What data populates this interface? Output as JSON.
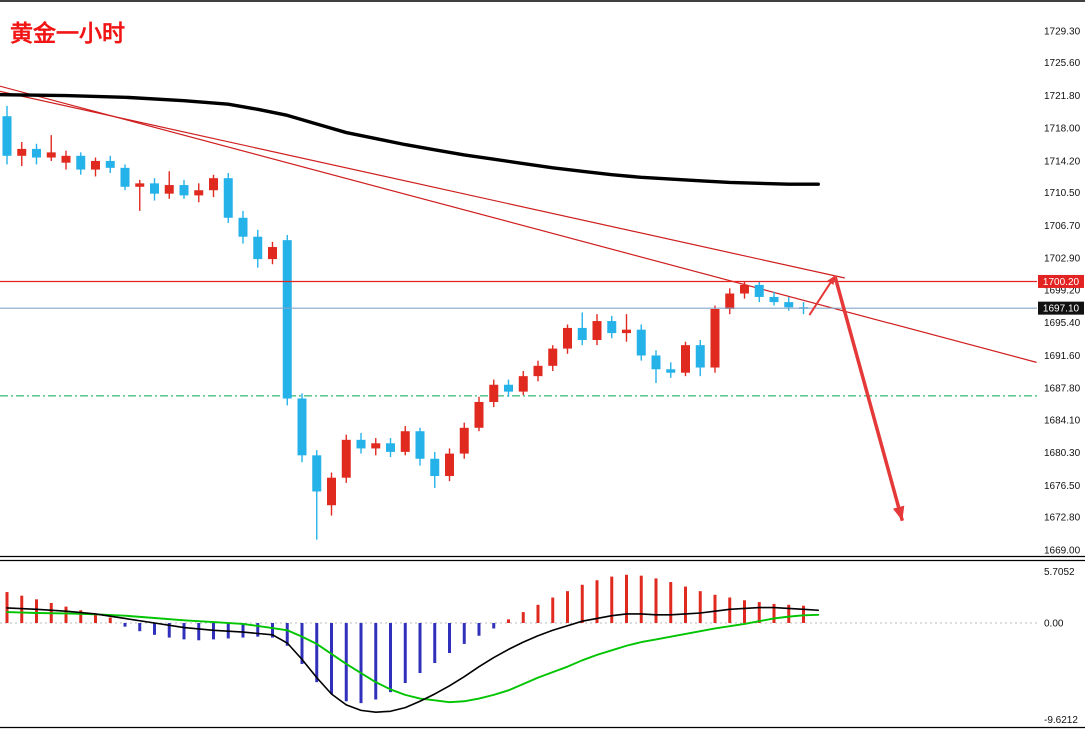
{
  "title": "黄金一小时",
  "colors": {
    "title": "#f21515",
    "bull": "#e02a20",
    "bear": "#25b2e8",
    "hist_neg": "#3030bb",
    "macd_line": "#000000",
    "signal_line": "#00c400",
    "ma_black": "#000000",
    "trend": "#cf1f1f",
    "arrow": "#e53939",
    "level_red": "#e32222",
    "level_blue": "#86a5c9",
    "level_green": "#00a550",
    "border": "#000000",
    "background": "#ffffff"
  },
  "y_axis": {
    "labels": [
      "1729.30",
      "1725.60",
      "1721.80",
      "1718.00",
      "1714.20",
      "1710.50",
      "1706.70",
      "1702.90",
      "1699.20",
      "1695.40",
      "1691.60",
      "1687.80",
      "1684.10",
      "1680.30",
      "1676.50",
      "1672.80",
      "1669.00"
    ]
  },
  "price_tags": [
    {
      "label": "1700.20",
      "price": 1700.2,
      "bg": "#e32222",
      "fg": "#ffffff"
    },
    {
      "label": "1697.10",
      "price": 1697.1,
      "bg": "#111111",
      "fg": "#ffffff"
    }
  ],
  "indicator_axis": {
    "max_label": "5.7052",
    "zero_label": "0.00",
    "min_label": "-9.6212"
  },
  "chart_data": {
    "type": "candlestick",
    "title": "黄金一小时",
    "price_range": [
      1669.0,
      1729.3
    ],
    "current_price": 1697.1,
    "resistance_level": 1700.2,
    "candles": [
      [
        1719.4,
        1720.6,
        1713.8,
        1714.8
      ],
      [
        1714.8,
        1716.4,
        1713.6,
        1715.6
      ],
      [
        1715.6,
        1716.2,
        1713.8,
        1714.6
      ],
      [
        1714.6,
        1717.2,
        1714.2,
        1715.2
      ],
      [
        1714.0,
        1715.4,
        1713.2,
        1714.8
      ],
      [
        1714.8,
        1715.2,
        1712.6,
        1713.2
      ],
      [
        1713.2,
        1714.6,
        1712.4,
        1714.2
      ],
      [
        1714.2,
        1714.8,
        1712.8,
        1713.4
      ],
      [
        1713.4,
        1713.8,
        1710.8,
        1711.2
      ],
      [
        1711.2,
        1712.0,
        1708.4,
        1711.6
      ],
      [
        1711.6,
        1712.2,
        1709.6,
        1710.4
      ],
      [
        1710.4,
        1713.0,
        1709.8,
        1711.4
      ],
      [
        1711.4,
        1712.0,
        1709.8,
        1710.2
      ],
      [
        1710.2,
        1711.6,
        1709.4,
        1710.8
      ],
      [
        1710.8,
        1712.6,
        1710.0,
        1712.2
      ],
      [
        1712.2,
        1712.8,
        1707.0,
        1707.6
      ],
      [
        1707.6,
        1708.4,
        1704.6,
        1705.4
      ],
      [
        1705.4,
        1706.2,
        1701.8,
        1702.8
      ],
      [
        1702.8,
        1704.8,
        1702.2,
        1704.2
      ],
      [
        1705.0,
        1705.6,
        1685.8,
        1686.6
      ],
      [
        1686.6,
        1687.2,
        1679.2,
        1680.0
      ],
      [
        1680.0,
        1680.6,
        1670.2,
        1675.8
      ],
      [
        1674.2,
        1678.0,
        1673.0,
        1677.4
      ],
      [
        1677.4,
        1682.4,
        1676.8,
        1681.8
      ],
      [
        1681.8,
        1682.6,
        1680.2,
        1680.8
      ],
      [
        1680.8,
        1682.0,
        1680.0,
        1681.4
      ],
      [
        1681.4,
        1682.0,
        1679.8,
        1680.4
      ],
      [
        1680.4,
        1683.4,
        1680.0,
        1682.8
      ],
      [
        1682.8,
        1683.2,
        1678.8,
        1679.6
      ],
      [
        1679.6,
        1680.4,
        1676.2,
        1677.6
      ],
      [
        1677.6,
        1680.8,
        1677.0,
        1680.2
      ],
      [
        1680.2,
        1683.8,
        1679.6,
        1683.2
      ],
      [
        1683.2,
        1686.8,
        1682.8,
        1686.2
      ],
      [
        1686.2,
        1688.8,
        1685.6,
        1688.2
      ],
      [
        1688.2,
        1688.8,
        1686.8,
        1687.4
      ],
      [
        1687.4,
        1689.8,
        1687.0,
        1689.2
      ],
      [
        1689.2,
        1691.0,
        1688.6,
        1690.4
      ],
      [
        1690.4,
        1692.8,
        1689.8,
        1692.4
      ],
      [
        1692.4,
        1695.2,
        1691.8,
        1694.8
      ],
      [
        1694.8,
        1696.6,
        1692.8,
        1693.4
      ],
      [
        1693.4,
        1696.4,
        1692.8,
        1695.6
      ],
      [
        1695.6,
        1696.2,
        1693.6,
        1694.2
      ],
      [
        1694.2,
        1696.4,
        1693.2,
        1694.6
      ],
      [
        1694.6,
        1695.2,
        1691.0,
        1691.6
      ],
      [
        1691.6,
        1692.2,
        1688.4,
        1690.0
      ],
      [
        1690.0,
        1690.8,
        1689.0,
        1689.6
      ],
      [
        1689.6,
        1693.2,
        1689.2,
        1692.8
      ],
      [
        1692.8,
        1693.4,
        1689.2,
        1690.2
      ],
      [
        1690.2,
        1697.4,
        1689.6,
        1697.0
      ],
      [
        1697.0,
        1699.4,
        1696.4,
        1698.8
      ],
      [
        1698.8,
        1700.2,
        1698.2,
        1699.8
      ],
      [
        1699.8,
        1700.2,
        1697.8,
        1698.4
      ],
      [
        1698.4,
        1699.0,
        1697.4,
        1697.8
      ],
      [
        1697.8,
        1698.4,
        1696.8,
        1697.2
      ],
      [
        1697.2,
        1697.8,
        1696.4,
        1697.1
      ]
    ],
    "ma_black": [
      [
        -0.5,
        1721.9
      ],
      [
        4,
        1721.8
      ],
      [
        8,
        1721.6
      ],
      [
        12,
        1721.2
      ],
      [
        15,
        1720.8
      ],
      [
        17,
        1720.2
      ],
      [
        19,
        1719.5
      ],
      [
        21,
        1718.5
      ],
      [
        23,
        1717.5
      ],
      [
        25,
        1716.8
      ],
      [
        27,
        1716.1
      ],
      [
        29,
        1715.5
      ],
      [
        31,
        1714.9
      ],
      [
        33,
        1714.4
      ],
      [
        35,
        1713.9
      ],
      [
        37,
        1713.4
      ],
      [
        39,
        1713.0
      ],
      [
        41,
        1712.6
      ],
      [
        43,
        1712.3
      ],
      [
        45,
        1712.1
      ],
      [
        47,
        1711.9
      ],
      [
        49,
        1711.7
      ],
      [
        51,
        1711.6
      ],
      [
        53,
        1711.5
      ],
      [
        55,
        1711.5
      ]
    ],
    "trendlines": [
      {
        "from": [
          -0.5,
          1722.9
        ],
        "to": [
          69.8,
          1690.8
        ],
        "width": 1.2
      },
      {
        "from": [
          -0.5,
          1722.3
        ],
        "to": [
          56.8,
          1700.6
        ],
        "width": 1.2
      }
    ],
    "levels": [
      {
        "price": 1686.9,
        "color_key": "level_green",
        "style": "dashdot",
        "width": 1,
        "z": "under"
      },
      {
        "price": 1700.2,
        "color_key": "level_red",
        "style": "solid",
        "width": 1.3,
        "z": "over"
      },
      {
        "price": 1697.1,
        "color_key": "level_blue",
        "style": "solid",
        "width": 1.1,
        "z": "over"
      }
    ],
    "arrows": [
      {
        "from": [
          54.4,
          1696.3
        ],
        "to": [
          56.15,
          1700.9
        ],
        "width": 2,
        "head": 9
      },
      {
        "from": [
          56.15,
          1700.7
        ],
        "to": [
          60.7,
          1672.4
        ],
        "width": 3.5,
        "head": 14
      }
    ],
    "macd": {
      "histogram": [
        3.4,
        3.0,
        2.6,
        2.2,
        1.8,
        1.4,
        1.0,
        0.6,
        -0.4,
        -0.9,
        -1.3,
        -1.6,
        -1.8,
        -1.9,
        -1.8,
        -1.7,
        -1.6,
        -1.5,
        -1.6,
        -2.5,
        -4.5,
        -6.5,
        -7.8,
        -8.6,
        -8.8,
        -8.4,
        -7.6,
        -6.6,
        -5.5,
        -4.4,
        -3.3,
        -2.3,
        -1.4,
        -0.6,
        0.4,
        1.2,
        2.0,
        2.8,
        3.5,
        4.2,
        4.7,
        5.1,
        5.3,
        5.2,
        4.9,
        4.5,
        4.0,
        3.5,
        3.1,
        2.8,
        2.5,
        2.3,
        2.1,
        2.0,
        1.9
      ],
      "macd_line": [
        [
          0,
          1.65
        ],
        [
          2,
          1.5
        ],
        [
          4,
          1.3
        ],
        [
          6,
          1.0
        ],
        [
          8,
          0.5
        ],
        [
          10,
          0.0
        ],
        [
          12,
          -0.5
        ],
        [
          14,
          -0.8
        ],
        [
          16,
          -1.0
        ],
        [
          18,
          -1.3
        ],
        [
          19,
          -2.2
        ],
        [
          20,
          -4.0
        ],
        [
          21,
          -6.0
        ],
        [
          22,
          -7.8
        ],
        [
          23,
          -9.0
        ],
        [
          24,
          -9.6
        ],
        [
          25,
          -9.8
        ],
        [
          26,
          -9.7
        ],
        [
          27,
          -9.3
        ],
        [
          28,
          -8.6
        ],
        [
          29,
          -7.8
        ],
        [
          30,
          -6.9
        ],
        [
          31,
          -5.9
        ],
        [
          32,
          -4.8
        ],
        [
          33,
          -3.8
        ],
        [
          34,
          -2.9
        ],
        [
          35,
          -2.1
        ],
        [
          36,
          -1.4
        ],
        [
          37,
          -0.8
        ],
        [
          38,
          -0.3
        ],
        [
          39,
          0.2
        ],
        [
          40,
          0.5
        ],
        [
          41,
          0.8
        ],
        [
          42,
          1.0
        ],
        [
          43,
          1.0
        ],
        [
          44,
          0.9
        ],
        [
          45,
          0.9
        ],
        [
          46,
          1.0
        ],
        [
          47,
          1.1
        ],
        [
          48,
          1.3
        ],
        [
          49,
          1.5
        ],
        [
          50,
          1.6
        ],
        [
          51,
          1.7
        ],
        [
          52,
          1.7
        ],
        [
          53,
          1.6
        ],
        [
          54,
          1.5
        ],
        [
          55,
          1.4
        ]
      ],
      "signal_line": [
        [
          0,
          1.2
        ],
        [
          2,
          1.1
        ],
        [
          4,
          1.05
        ],
        [
          6,
          0.95
        ],
        [
          8,
          0.8
        ],
        [
          10,
          0.55
        ],
        [
          12,
          0.3
        ],
        [
          14,
          0.1
        ],
        [
          16,
          -0.1
        ],
        [
          18,
          -0.55
        ],
        [
          19,
          -0.8
        ],
        [
          20,
          -1.5
        ],
        [
          21,
          -2.3
        ],
        [
          22,
          -3.4
        ],
        [
          23,
          -4.5
        ],
        [
          24,
          -5.5
        ],
        [
          25,
          -6.5
        ],
        [
          26,
          -7.3
        ],
        [
          27,
          -7.9
        ],
        [
          28,
          -8.3
        ],
        [
          29,
          -8.5
        ],
        [
          30,
          -8.7
        ],
        [
          31,
          -8.6
        ],
        [
          32,
          -8.3
        ],
        [
          33,
          -7.9
        ],
        [
          34,
          -7.4
        ],
        [
          35,
          -6.7
        ],
        [
          36,
          -6.0
        ],
        [
          37,
          -5.4
        ],
        [
          38,
          -4.8
        ],
        [
          39,
          -4.1
        ],
        [
          40,
          -3.5
        ],
        [
          41,
          -3.0
        ],
        [
          42,
          -2.5
        ],
        [
          43,
          -2.1
        ],
        [
          44,
          -1.8
        ],
        [
          45,
          -1.5
        ],
        [
          46,
          -1.2
        ],
        [
          47,
          -0.9
        ],
        [
          48,
          -0.6
        ],
        [
          49,
          -0.35
        ],
        [
          50,
          -0.1
        ],
        [
          51,
          0.2
        ],
        [
          52,
          0.5
        ],
        [
          53,
          0.7
        ],
        [
          54,
          0.85
        ],
        [
          55,
          0.9
        ]
      ]
    }
  }
}
